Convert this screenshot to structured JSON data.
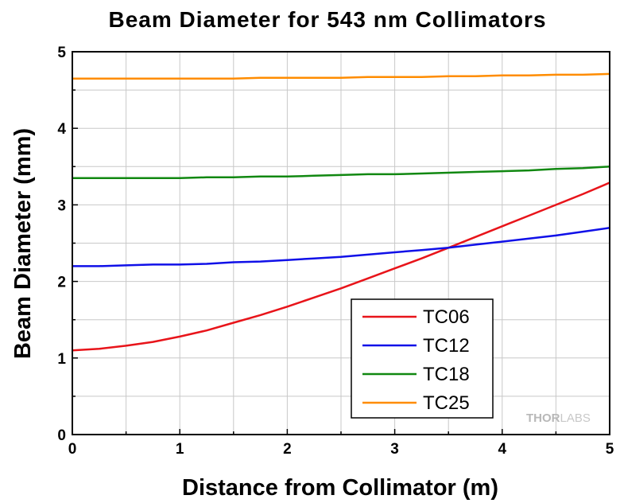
{
  "chart_data": {
    "type": "line",
    "title": "Beam Diameter for 543 nm Collimators",
    "xlabel": "Distance from Collimator (m)",
    "ylabel": "Beam Diameter (mm)",
    "xlim": [
      0,
      5
    ],
    "ylim": [
      0,
      5
    ],
    "xticks": [
      "0",
      "1",
      "2",
      "3",
      "4",
      "5"
    ],
    "yticks": [
      "0",
      "1",
      "2",
      "3",
      "4",
      "5"
    ],
    "grid": true,
    "legend_position": "bottom-right",
    "x": [
      0,
      0.25,
      0.5,
      0.75,
      1,
      1.25,
      1.5,
      1.75,
      2,
      2.25,
      2.5,
      2.75,
      3,
      3.25,
      3.5,
      3.75,
      4,
      4.25,
      4.5,
      4.75,
      5
    ],
    "series": [
      {
        "name": "TC06",
        "color": "#e8141a",
        "values": [
          1.1,
          1.12,
          1.16,
          1.21,
          1.28,
          1.36,
          1.46,
          1.56,
          1.67,
          1.79,
          1.91,
          2.04,
          2.17,
          2.3,
          2.44,
          2.58,
          2.72,
          2.86,
          3.0,
          3.14,
          3.29
        ]
      },
      {
        "name": "TC12",
        "color": "#1010e8",
        "values": [
          2.2,
          2.2,
          2.21,
          2.22,
          2.22,
          2.23,
          2.25,
          2.26,
          2.28,
          2.3,
          2.32,
          2.35,
          2.38,
          2.41,
          2.44,
          2.48,
          2.52,
          2.56,
          2.6,
          2.65,
          2.7
        ]
      },
      {
        "name": "TC18",
        "color": "#118811",
        "values": [
          3.35,
          3.35,
          3.35,
          3.35,
          3.35,
          3.36,
          3.36,
          3.37,
          3.37,
          3.38,
          3.39,
          3.4,
          3.4,
          3.41,
          3.42,
          3.43,
          3.44,
          3.45,
          3.47,
          3.48,
          3.5
        ]
      },
      {
        "name": "TC25",
        "color": "#ff8c00",
        "values": [
          4.65,
          4.65,
          4.65,
          4.65,
          4.65,
          4.65,
          4.65,
          4.66,
          4.66,
          4.66,
          4.66,
          4.67,
          4.67,
          4.67,
          4.68,
          4.68,
          4.69,
          4.69,
          4.7,
          4.7,
          4.71
        ]
      }
    ],
    "watermark": {
      "part1": "THOR",
      "part2": "LABS"
    }
  }
}
